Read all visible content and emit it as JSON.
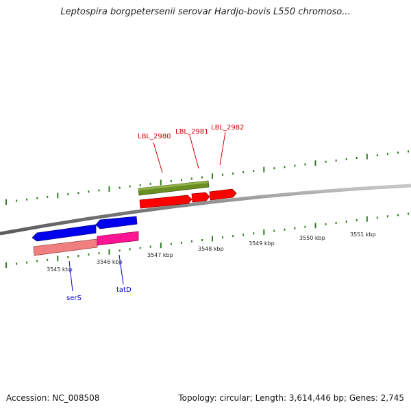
{
  "title": "Leptospira borgpetersenii serovar Hardjo-bovis L550 chromoso...",
  "footer": {
    "accession": "Accession: NC_008508",
    "summary": "Topology: circular; Length: 3,614,446 bp; Genes: 2,745"
  },
  "colors": {
    "backbone": "#8a8a8a",
    "tick_green": "#2e7d1e",
    "label_red": "#cc0000",
    "label_blue": "#0000cc",
    "gene_red": "#ff0000",
    "gene_olive": "#6b8e23",
    "gene_blue": "#0000ee",
    "gene_salmon": "#f08080",
    "gene_magenta": "#ff1493"
  },
  "kbp_ticks": [
    {
      "label": "3545 kbp"
    },
    {
      "label": "3546 kbp"
    },
    {
      "label": "3547 kbp"
    },
    {
      "label": "3548 kbp"
    },
    {
      "label": "3549 kbp"
    },
    {
      "label": "3550 kbp"
    },
    {
      "label": "3551 kbp"
    }
  ],
  "genes": [
    {
      "label": "LBL_2980",
      "color": "red"
    },
    {
      "label": "LBL_2981",
      "color": "red"
    },
    {
      "label": "LBL_2982",
      "color": "red"
    },
    {
      "label": "serS",
      "color": "blue"
    },
    {
      "label": "tatD",
      "color": "blue"
    }
  ]
}
